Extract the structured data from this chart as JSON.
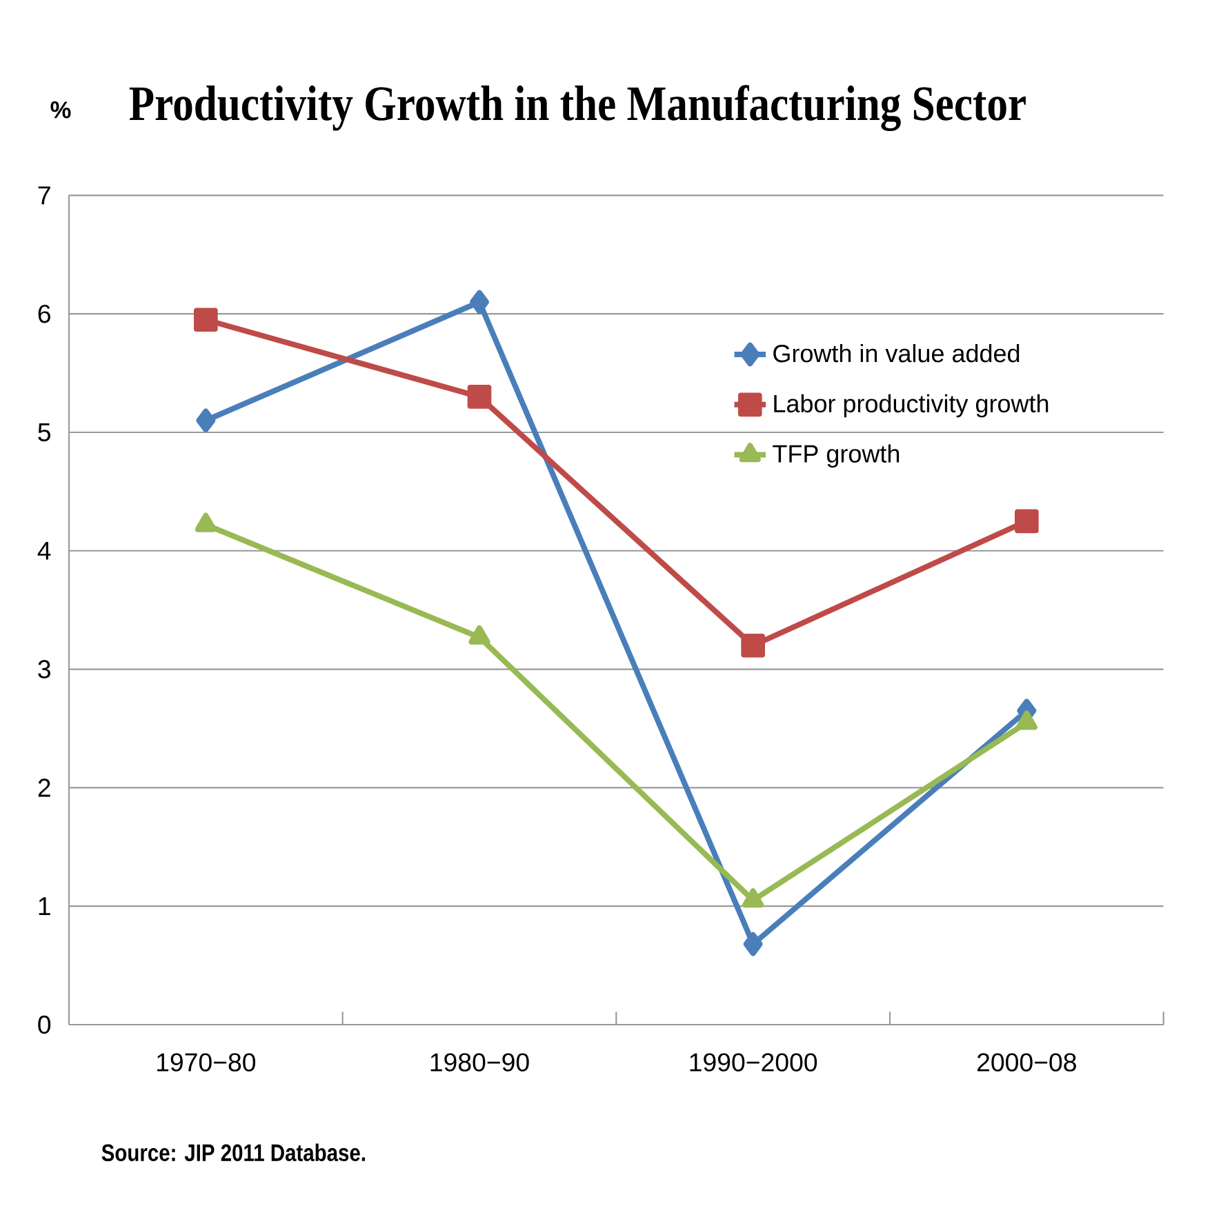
{
  "chart_data": {
    "type": "line",
    "title": "Productivity Growth in the Manufacturing Sector",
    "ylabel": "%",
    "categories": [
      "1970−80",
      "1980−90",
      "1990−2000",
      "2000−08"
    ],
    "ylim": [
      0,
      7
    ],
    "yticks": [
      0,
      1,
      2,
      3,
      4,
      5,
      6,
      7
    ],
    "grid": "y",
    "legend": "right",
    "line_style": "solid",
    "series": [
      {
        "name": "Growth in value added",
        "color": "#4a7ebb",
        "marker": "diamond",
        "values": [
          5.1,
          6.1,
          0.68,
          2.65
        ]
      },
      {
        "name": "Labor productivity growth",
        "color": "#be4b48",
        "marker": "square",
        "values": [
          5.95,
          5.3,
          3.2,
          4.25
        ]
      },
      {
        "name": "TFP growth",
        "color": "#98b954",
        "marker": "triangle",
        "values": [
          4.22,
          3.27,
          1.05,
          2.55
        ]
      }
    ],
    "annotations": [
      "Source: JIP 2011 Database."
    ]
  }
}
